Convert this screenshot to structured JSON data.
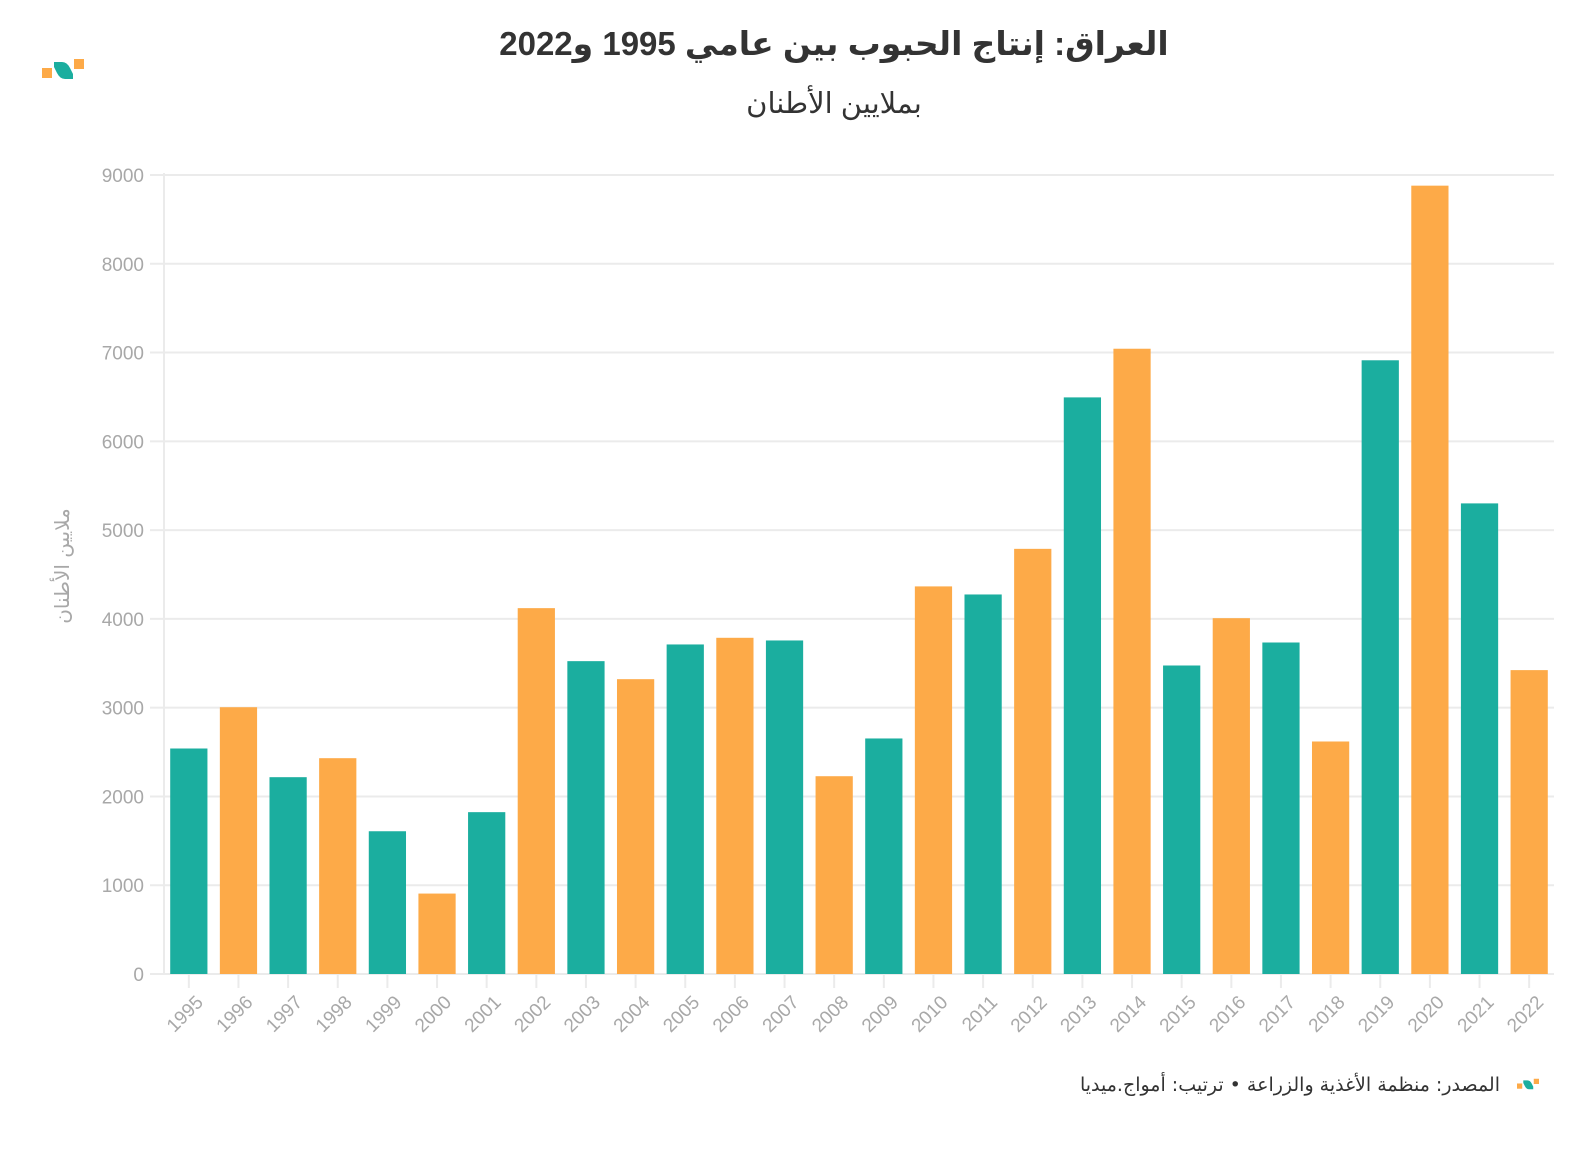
{
  "header": {
    "title": "العراق: إنتاج الحبوب بين عامي 1995 و2022",
    "subtitle": "بملايين الأطنان",
    "logo_icon": "amwaj-media-logo-icon"
  },
  "footer": {
    "source_text": "المصدر: منظمة الأغذية والزراعة • ترتيب: أمواج.ميديا",
    "logo_icon": "amwaj-media-logo-icon"
  },
  "colors": {
    "teal": "#1BAE9F",
    "orange": "#FDAA48",
    "grid": "#ebebeb",
    "tick_text": "#a8a8a8",
    "title_text": "#333333"
  },
  "chart_data": {
    "type": "bar",
    "title": "العراق: إنتاج الحبوب بين عامي 1995 و2022",
    "subtitle": "بملايين الأطنان",
    "xlabel": "",
    "ylabel": "ملايين الأطنان",
    "ylim": [
      0,
      9000
    ],
    "yticks": [
      0,
      1000,
      2000,
      3000,
      4000,
      5000,
      6000,
      7000,
      8000,
      9000
    ],
    "grid": true,
    "legend": "none",
    "bar_color_pattern": "alternating teal/orange",
    "categories": [
      "1995",
      "1996",
      "1997",
      "1998",
      "1999",
      "2000",
      "2001",
      "2002",
      "2003",
      "2004",
      "2005",
      "2006",
      "2007",
      "2008",
      "2009",
      "2010",
      "2011",
      "2012",
      "2013",
      "2014",
      "2015",
      "2016",
      "2017",
      "2018",
      "2019",
      "2020",
      "2021",
      "2022"
    ],
    "values": [
      2540,
      3005,
      2217,
      2431,
      1608,
      906,
      1823,
      4121,
      3524,
      3321,
      3712,
      3787,
      3757,
      2228,
      2653,
      4366,
      4275,
      4789,
      6495,
      7043,
      3475,
      4008,
      3734,
      2619,
      6913,
      8880,
      5301,
      3423
    ]
  }
}
